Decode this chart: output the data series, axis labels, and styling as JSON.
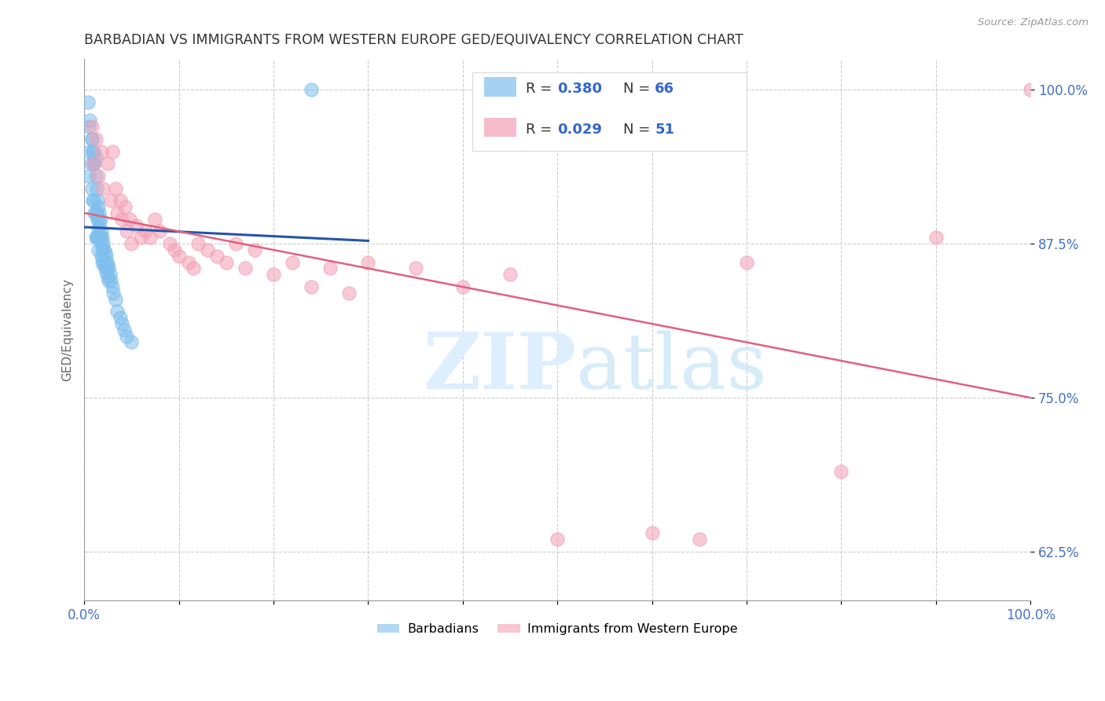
{
  "title": "BARBADIAN VS IMMIGRANTS FROM WESTERN EUROPE GED/EQUIVALENCY CORRELATION CHART",
  "source": "Source: ZipAtlas.com",
  "ylabel": "GED/Equivalency",
  "xlim": [
    0.0,
    1.0
  ],
  "ylim": [
    0.585,
    1.025
  ],
  "yticks": [
    0.625,
    0.75,
    0.875,
    1.0
  ],
  "ytick_labels": [
    "62.5%",
    "75.0%",
    "87.5%",
    "100.0%"
  ],
  "blue_color": "#7fbfed",
  "pink_color": "#f4a0b5",
  "line_blue": "#2255aa",
  "line_pink": "#e06080",
  "blue_R": 0.38,
  "blue_N": 66,
  "pink_R": 0.029,
  "pink_N": 51,
  "barbadians_x": [
    0.005,
    0.005,
    0.006,
    0.007,
    0.008,
    0.008,
    0.009,
    0.009,
    0.01,
    0.01,
    0.011,
    0.011,
    0.012,
    0.012,
    0.012,
    0.013,
    0.013,
    0.013,
    0.014,
    0.014,
    0.014,
    0.015,
    0.015,
    0.015,
    0.015,
    0.016,
    0.016,
    0.016,
    0.017,
    0.017,
    0.018,
    0.018,
    0.018,
    0.019,
    0.019,
    0.019,
    0.02,
    0.02,
    0.021,
    0.021,
    0.022,
    0.022,
    0.023,
    0.023,
    0.024,
    0.025,
    0.025,
    0.026,
    0.026,
    0.027,
    0.028,
    0.03,
    0.031,
    0.033,
    0.035,
    0.038,
    0.04,
    0.042,
    0.045,
    0.05,
    0.004,
    0.006,
    0.008,
    0.01,
    0.012,
    0.24
  ],
  "barbadians_y": [
    0.93,
    0.97,
    0.95,
    0.94,
    0.96,
    0.92,
    0.95,
    0.91,
    0.94,
    0.91,
    0.94,
    0.9,
    0.93,
    0.9,
    0.88,
    0.92,
    0.9,
    0.88,
    0.91,
    0.895,
    0.88,
    0.905,
    0.895,
    0.885,
    0.87,
    0.9,
    0.89,
    0.88,
    0.895,
    0.88,
    0.885,
    0.875,
    0.865,
    0.88,
    0.87,
    0.86,
    0.875,
    0.862,
    0.87,
    0.858,
    0.868,
    0.855,
    0.865,
    0.852,
    0.86,
    0.858,
    0.848,
    0.855,
    0.845,
    0.85,
    0.845,
    0.84,
    0.835,
    0.83,
    0.82,
    0.815,
    0.81,
    0.805,
    0.8,
    0.795,
    0.99,
    0.975,
    0.96,
    0.95,
    0.945,
    1.0
  ],
  "western_europe_x": [
    0.008,
    0.01,
    0.012,
    0.015,
    0.018,
    0.02,
    0.025,
    0.028,
    0.03,
    0.033,
    0.035,
    0.038,
    0.04,
    0.043,
    0.045,
    0.048,
    0.05,
    0.055,
    0.06,
    0.065,
    0.07,
    0.075,
    0.08,
    0.09,
    0.095,
    0.1,
    0.11,
    0.115,
    0.12,
    0.13,
    0.14,
    0.15,
    0.16,
    0.17,
    0.18,
    0.2,
    0.22,
    0.24,
    0.26,
    0.28,
    0.3,
    0.35,
    0.4,
    0.45,
    0.5,
    0.6,
    0.65,
    0.7,
    0.8,
    0.9,
    1.0
  ],
  "western_europe_y": [
    0.97,
    0.94,
    0.96,
    0.93,
    0.95,
    0.92,
    0.94,
    0.91,
    0.95,
    0.92,
    0.9,
    0.91,
    0.895,
    0.905,
    0.885,
    0.895,
    0.875,
    0.89,
    0.88,
    0.885,
    0.88,
    0.895,
    0.885,
    0.875,
    0.87,
    0.865,
    0.86,
    0.855,
    0.875,
    0.87,
    0.865,
    0.86,
    0.875,
    0.855,
    0.87,
    0.85,
    0.86,
    0.84,
    0.855,
    0.835,
    0.86,
    0.855,
    0.84,
    0.85,
    0.635,
    0.64,
    0.635,
    0.86,
    0.69,
    0.88,
    1.0
  ]
}
